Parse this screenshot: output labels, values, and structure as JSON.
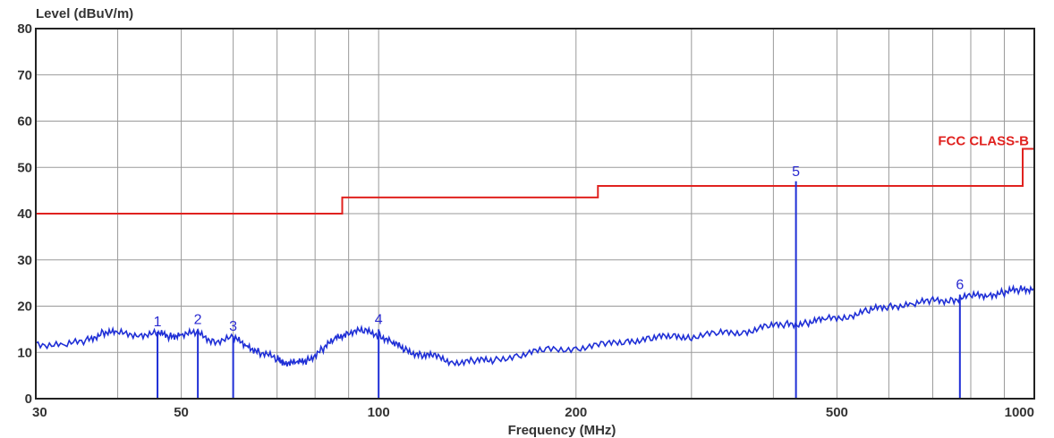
{
  "chart_data": {
    "type": "line",
    "title": "",
    "ylabel": "Level (dBuV/m)",
    "xlabel": "Frequency (MHz)",
    "x_scale": "log",
    "xlim": [
      30,
      1000
    ],
    "ylim": [
      0,
      80
    ],
    "grid": true,
    "x_ticks": [
      {
        "value": 30,
        "label": "30"
      },
      {
        "value": 50,
        "label": "50"
      },
      {
        "value": 100,
        "label": "100"
      },
      {
        "value": 200,
        "label": "200"
      },
      {
        "value": 500,
        "label": "500"
      },
      {
        "value": 1000,
        "label": "1000"
      }
    ],
    "x_minor_grid": [
      40,
      60,
      70,
      80,
      90,
      300,
      400,
      600,
      700,
      800,
      900
    ],
    "y_ticks": [
      0,
      10,
      20,
      30,
      40,
      50,
      60,
      70,
      80
    ],
    "limit_line": {
      "name": "FCC CLASS-B",
      "color": "#e0221f",
      "x": [
        30,
        88,
        88,
        216,
        216,
        960,
        960,
        1000
      ],
      "y": [
        40,
        40,
        43.5,
        43.5,
        46,
        46,
        54,
        54
      ]
    },
    "series": [
      {
        "color": "#1f2fd6",
        "x": [
          30,
          33,
          36,
          38,
          40,
          43,
          46,
          48,
          50,
          53,
          56,
          60,
          63,
          66,
          70,
          72,
          75,
          78,
          82,
          86,
          90,
          95,
          100,
          105,
          110,
          116,
          122,
          130,
          140,
          150,
          165,
          180,
          200,
          220,
          240,
          260,
          280,
          300,
          330,
          360,
          390,
          420,
          450,
          480,
          520,
          560,
          600,
          650,
          700,
          750,
          800,
          850,
          900,
          950,
          1000
        ],
        "y": [
          12,
          11.5,
          12.5,
          14.5,
          14,
          14,
          14,
          13.5,
          14,
          14,
          12.5,
          13,
          11.5,
          10,
          8.5,
          8,
          7.5,
          8.5,
          10.5,
          13,
          14.5,
          14.5,
          14,
          12,
          10.5,
          9.5,
          9,
          8,
          8,
          8.5,
          9.5,
          10.5,
          11,
          11.5,
          12.5,
          13,
          13.5,
          13.5,
          14,
          14.5,
          15.5,
          16,
          16.5,
          17,
          18,
          19,
          20,
          20.5,
          21,
          21.5,
          22,
          22.5,
          23,
          23.5,
          24
        ]
      }
    ],
    "markers": [
      {
        "label": "1",
        "x": 46,
        "y": 14.5
      },
      {
        "label": "2",
        "x": 53,
        "y": 15
      },
      {
        "label": "3",
        "x": 60,
        "y": 13.5
      },
      {
        "label": "4",
        "x": 100,
        "y": 15
      },
      {
        "label": "5",
        "x": 433,
        "y": 47
      },
      {
        "label": "6",
        "x": 770,
        "y": 22.5
      }
    ]
  }
}
